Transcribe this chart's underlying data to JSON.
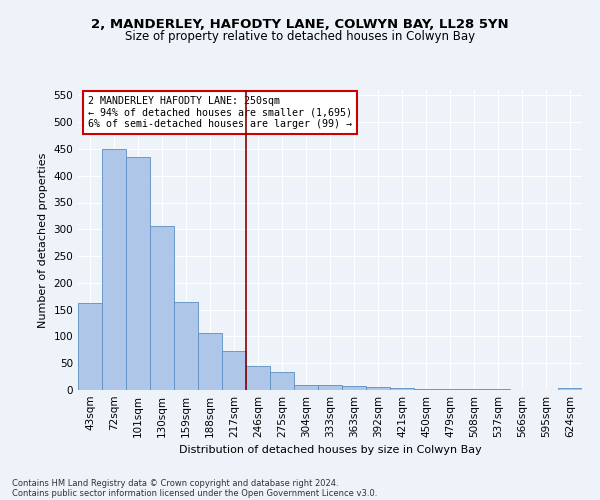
{
  "title1": "2, MANDERLEY, HAFODTY LANE, COLWYN BAY, LL28 5YN",
  "title2": "Size of property relative to detached houses in Colwyn Bay",
  "xlabel": "Distribution of detached houses by size in Colwyn Bay",
  "ylabel": "Number of detached properties",
  "categories": [
    "43sqm",
    "72sqm",
    "101sqm",
    "130sqm",
    "159sqm",
    "188sqm",
    "217sqm",
    "246sqm",
    "275sqm",
    "304sqm",
    "333sqm",
    "363sqm",
    "392sqm",
    "421sqm",
    "450sqm",
    "479sqm",
    "508sqm",
    "537sqm",
    "566sqm",
    "595sqm",
    "624sqm"
  ],
  "values": [
    163,
    450,
    435,
    307,
    165,
    107,
    73,
    44,
    33,
    10,
    10,
    8,
    5,
    3,
    2,
    1,
    1,
    1,
    0,
    0,
    4
  ],
  "bar_color": "#aec6e8",
  "bar_edge_color": "#5a8fc2",
  "vline_index": 7,
  "vline_color": "#8b0000",
  "annotation_text": "2 MANDERLEY HAFODTY LANE: 250sqm\n← 94% of detached houses are smaller (1,695)\n6% of semi-detached houses are larger (99) →",
  "annotation_box_color": "#ffffff",
  "annotation_edge_color": "#cc0000",
  "ylim": [
    0,
    560
  ],
  "yticks": [
    0,
    50,
    100,
    150,
    200,
    250,
    300,
    350,
    400,
    450,
    500,
    550
  ],
  "footer1": "Contains HM Land Registry data © Crown copyright and database right 2024.",
  "footer2": "Contains public sector information licensed under the Open Government Licence v3.0.",
  "bg_color": "#eef2f9",
  "grid_color": "#ffffff",
  "title1_fontsize": 9.5,
  "title2_fontsize": 8.5,
  "axis_label_fontsize": 8,
  "tick_fontsize": 7.5,
  "footer_fontsize": 6.0
}
